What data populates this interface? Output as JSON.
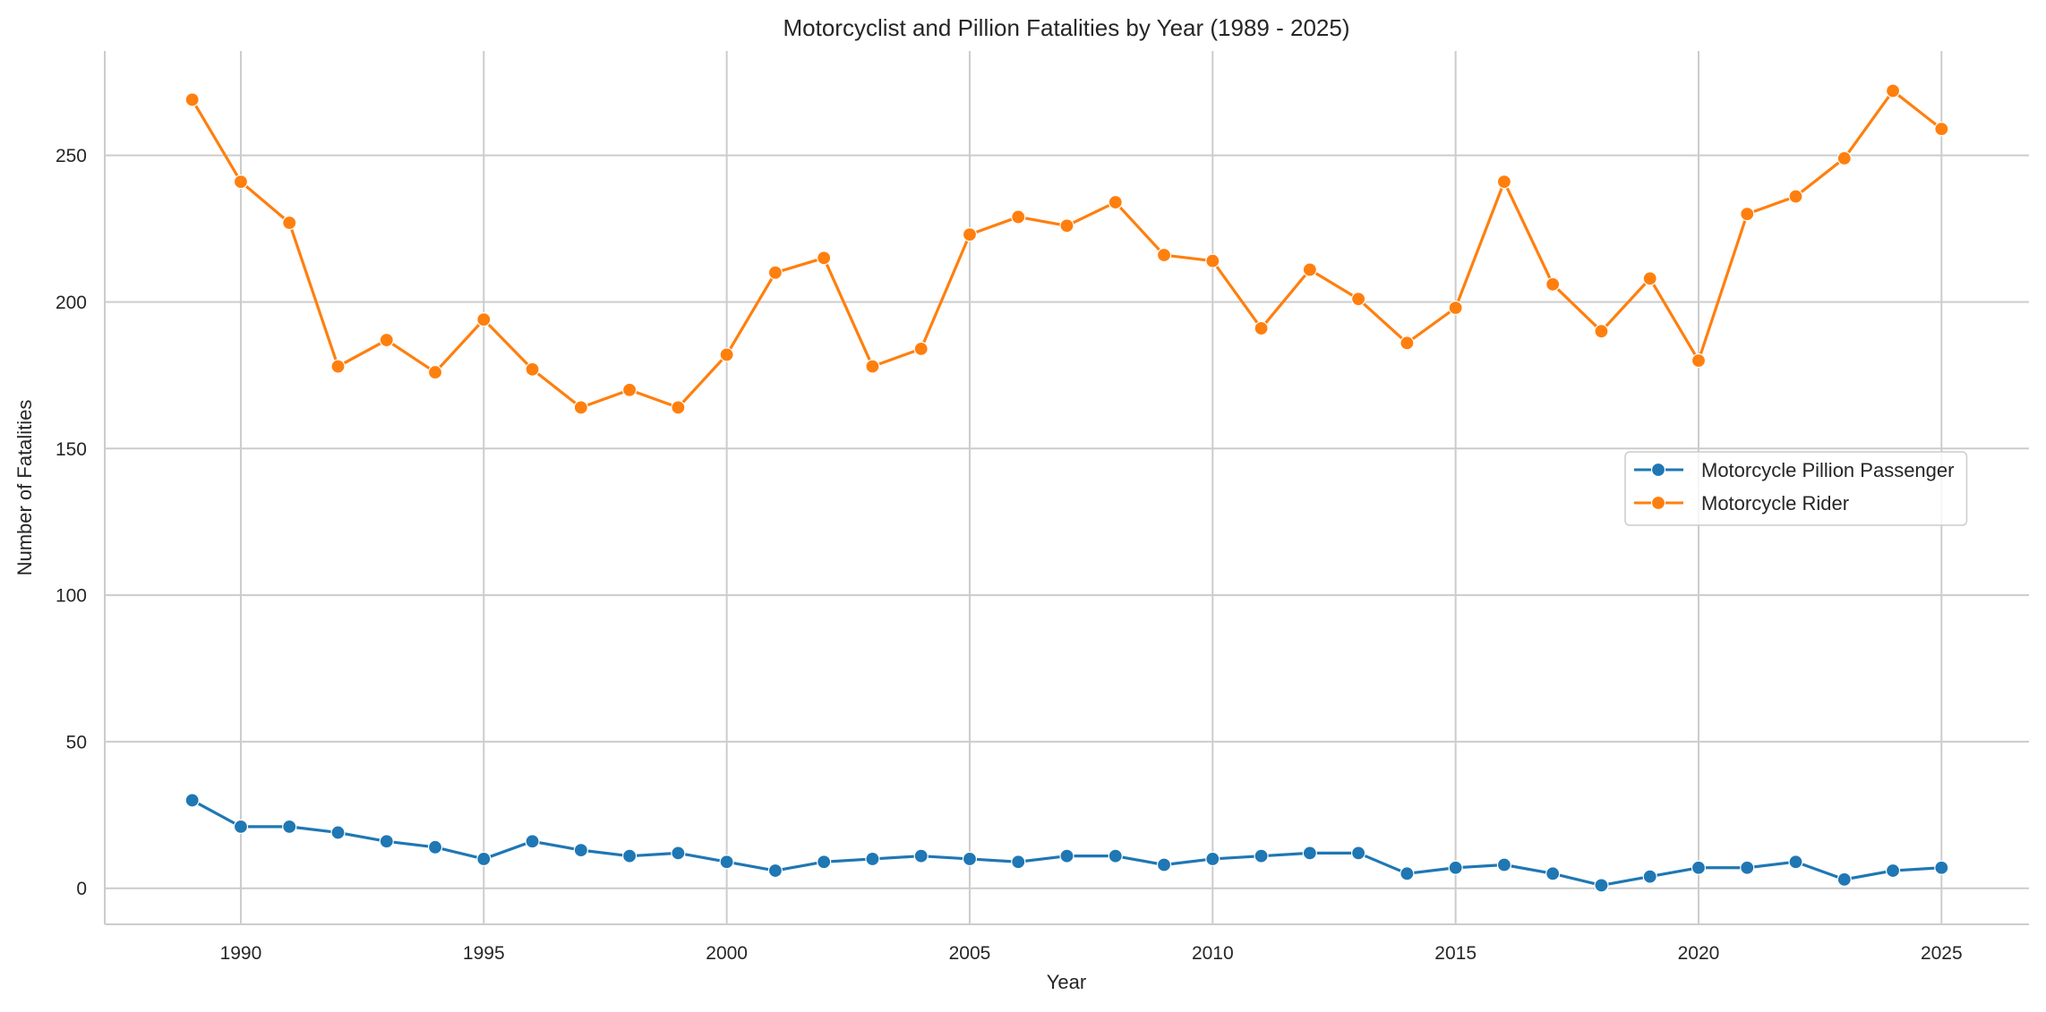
{
  "chart_data": {
    "type": "line",
    "title": "Motorcyclist and Pillion Fatalities by Year (1989 - 2025)",
    "xlabel": "Year",
    "ylabel": "Number of Fatalities",
    "xlim": [
      1987.2,
      2026.8
    ],
    "ylim": [
      -12.3,
      285.6
    ],
    "x_ticks": [
      1990,
      1995,
      2000,
      2005,
      2010,
      2015,
      2020,
      2025
    ],
    "y_ticks": [
      0,
      50,
      100,
      150,
      200,
      250
    ],
    "grid": true,
    "legend_position": "center-right",
    "x": [
      1989,
      1990,
      1991,
      1992,
      1993,
      1994,
      1995,
      1996,
      1997,
      1998,
      1999,
      2000,
      2001,
      2002,
      2003,
      2004,
      2005,
      2006,
      2007,
      2008,
      2009,
      2010,
      2011,
      2012,
      2013,
      2014,
      2015,
      2016,
      2017,
      2018,
      2019,
      2020,
      2021,
      2022,
      2023,
      2024,
      2025
    ],
    "series": [
      {
        "name": "Motorcycle Pillion Passenger",
        "color": "#1f77b4",
        "values": [
          30,
          21,
          21,
          19,
          16,
          14,
          10,
          16,
          13,
          11,
          12,
          9,
          6,
          9,
          10,
          11,
          10,
          9,
          11,
          11,
          8,
          10,
          11,
          12,
          12,
          5,
          7,
          8,
          5,
          1,
          4,
          7,
          7,
          9,
          3,
          6,
          7
        ]
      },
      {
        "name": "Motorcycle Rider",
        "color": "#ff7f0e",
        "values": [
          269,
          241,
          227,
          178,
          187,
          176,
          194,
          177,
          164,
          170,
          164,
          182,
          210,
          215,
          178,
          184,
          223,
          229,
          226,
          234,
          216,
          214,
          191,
          211,
          201,
          186,
          198,
          241,
          206,
          190,
          208,
          180,
          230,
          236,
          249,
          272,
          259
        ]
      }
    ]
  }
}
